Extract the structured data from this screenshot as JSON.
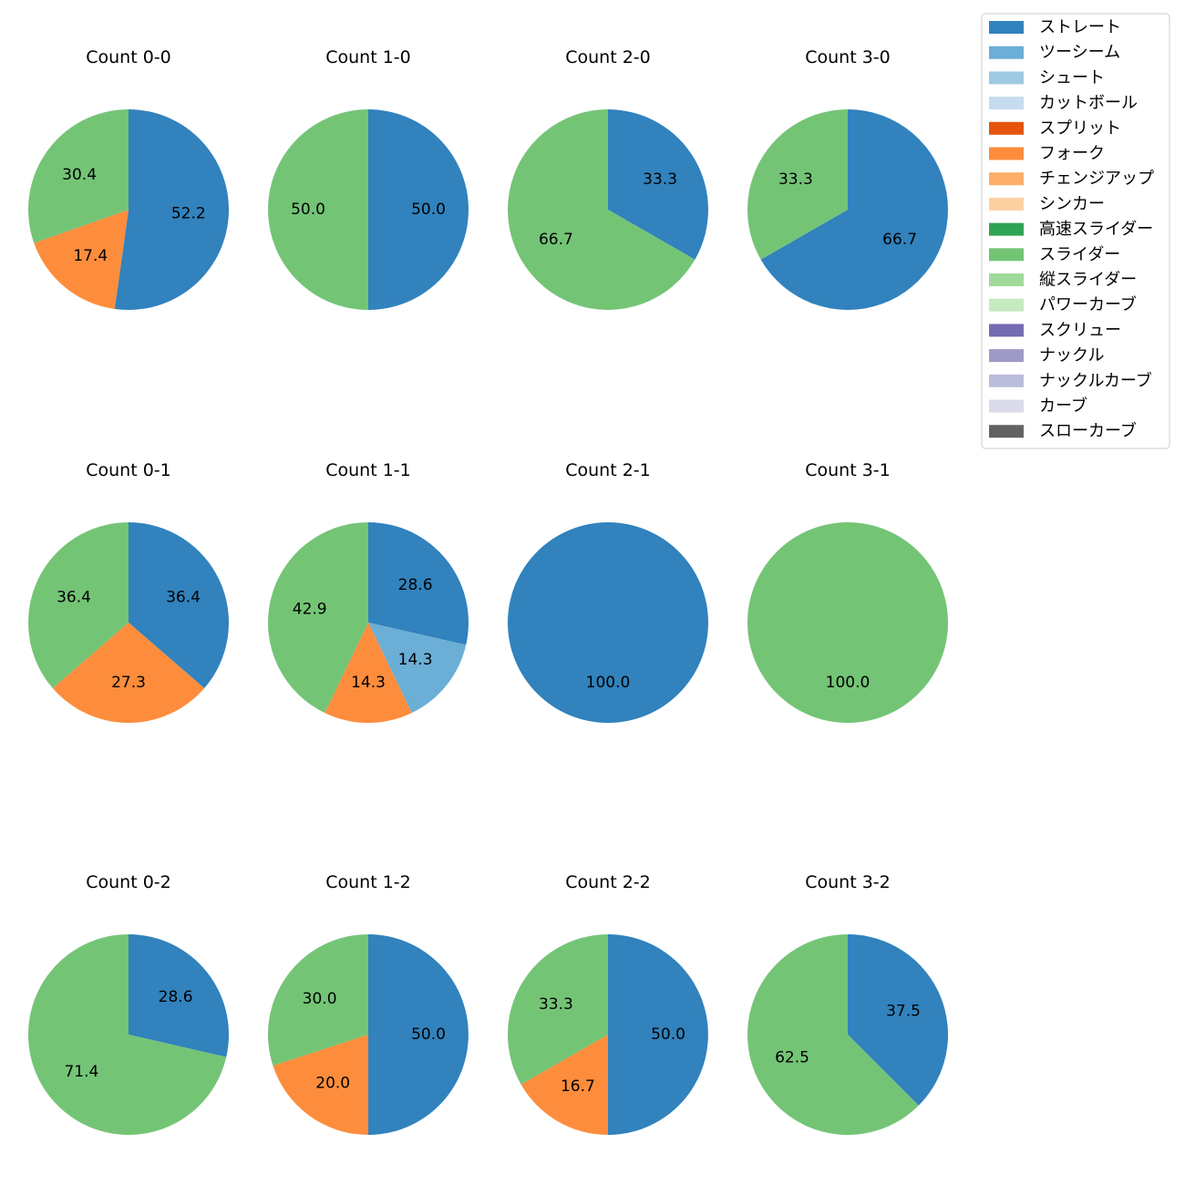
{
  "chart_data": {
    "type": "pie",
    "legend": {
      "placement": "top-right",
      "entries": [
        {
          "name": "ストレート",
          "color": "#3182bd"
        },
        {
          "name": "ツーシーム",
          "color": "#6baed6"
        },
        {
          "name": "シュート",
          "color": "#9ecae1"
        },
        {
          "name": "カットボール",
          "color": "#c6dbef"
        },
        {
          "name": "スプリット",
          "color": "#e6550d"
        },
        {
          "name": "フォーク",
          "color": "#fd8d3c"
        },
        {
          "name": "チェンジアップ",
          "color": "#fdae6b"
        },
        {
          "name": "シンカー",
          "color": "#fdd0a2"
        },
        {
          "name": "高速スライダー",
          "color": "#31a354"
        },
        {
          "name": "スライダー",
          "color": "#74c476"
        },
        {
          "name": "縦スライダー",
          "color": "#a1d99b"
        },
        {
          "name": "パワーカーブ",
          "color": "#c7e9c0"
        },
        {
          "name": "スクリュー",
          "color": "#756bb1"
        },
        {
          "name": "ナックル",
          "color": "#9e9ac8"
        },
        {
          "name": "ナックルカーブ",
          "color": "#bcbddc"
        },
        {
          "name": "カーブ",
          "color": "#dadaeb"
        },
        {
          "name": "スローカーブ",
          "color": "#636363"
        }
      ]
    },
    "pies": [
      {
        "title": "Count 0-0",
        "slices": [
          {
            "name": "ストレート",
            "value": 52.2
          },
          {
            "name": "フォーク",
            "value": 17.4
          },
          {
            "name": "スライダー",
            "value": 30.4
          }
        ]
      },
      {
        "title": "Count 1-0",
        "slices": [
          {
            "name": "ストレート",
            "value": 50.0
          },
          {
            "name": "スライダー",
            "value": 50.0
          }
        ]
      },
      {
        "title": "Count 2-0",
        "slices": [
          {
            "name": "ストレート",
            "value": 33.3
          },
          {
            "name": "スライダー",
            "value": 66.7
          }
        ]
      },
      {
        "title": "Count 3-0",
        "slices": [
          {
            "name": "ストレート",
            "value": 66.7
          },
          {
            "name": "スライダー",
            "value": 33.3
          }
        ]
      },
      {
        "title": "Count 0-1",
        "slices": [
          {
            "name": "ストレート",
            "value": 36.4
          },
          {
            "name": "フォーク",
            "value": 27.3
          },
          {
            "name": "スライダー",
            "value": 36.4
          }
        ]
      },
      {
        "title": "Count 1-1",
        "slices": [
          {
            "name": "ストレート",
            "value": 28.6
          },
          {
            "name": "ツーシーム",
            "value": 14.3
          },
          {
            "name": "フォーク",
            "value": 14.3
          },
          {
            "name": "スライダー",
            "value": 42.9
          }
        ]
      },
      {
        "title": "Count 2-1",
        "slices": [
          {
            "name": "ストレート",
            "value": 100.0
          }
        ]
      },
      {
        "title": "Count 3-1",
        "slices": [
          {
            "name": "スライダー",
            "value": 100.0
          }
        ]
      },
      {
        "title": "Count 0-2",
        "slices": [
          {
            "name": "ストレート",
            "value": 28.6
          },
          {
            "name": "スライダー",
            "value": 71.4
          }
        ]
      },
      {
        "title": "Count 1-2",
        "slices": [
          {
            "name": "ストレート",
            "value": 50.0
          },
          {
            "name": "フォーク",
            "value": 20.0
          },
          {
            "name": "スライダー",
            "value": 30.0
          }
        ]
      },
      {
        "title": "Count 2-2",
        "slices": [
          {
            "name": "ストレート",
            "value": 50.0
          },
          {
            "name": "フォーク",
            "value": 16.7
          },
          {
            "name": "スライダー",
            "value": 33.3
          }
        ]
      },
      {
        "title": "Count 3-2",
        "slices": [
          {
            "name": "ストレート",
            "value": 37.5
          },
          {
            "name": "スライダー",
            "value": 62.5
          }
        ]
      }
    ]
  }
}
